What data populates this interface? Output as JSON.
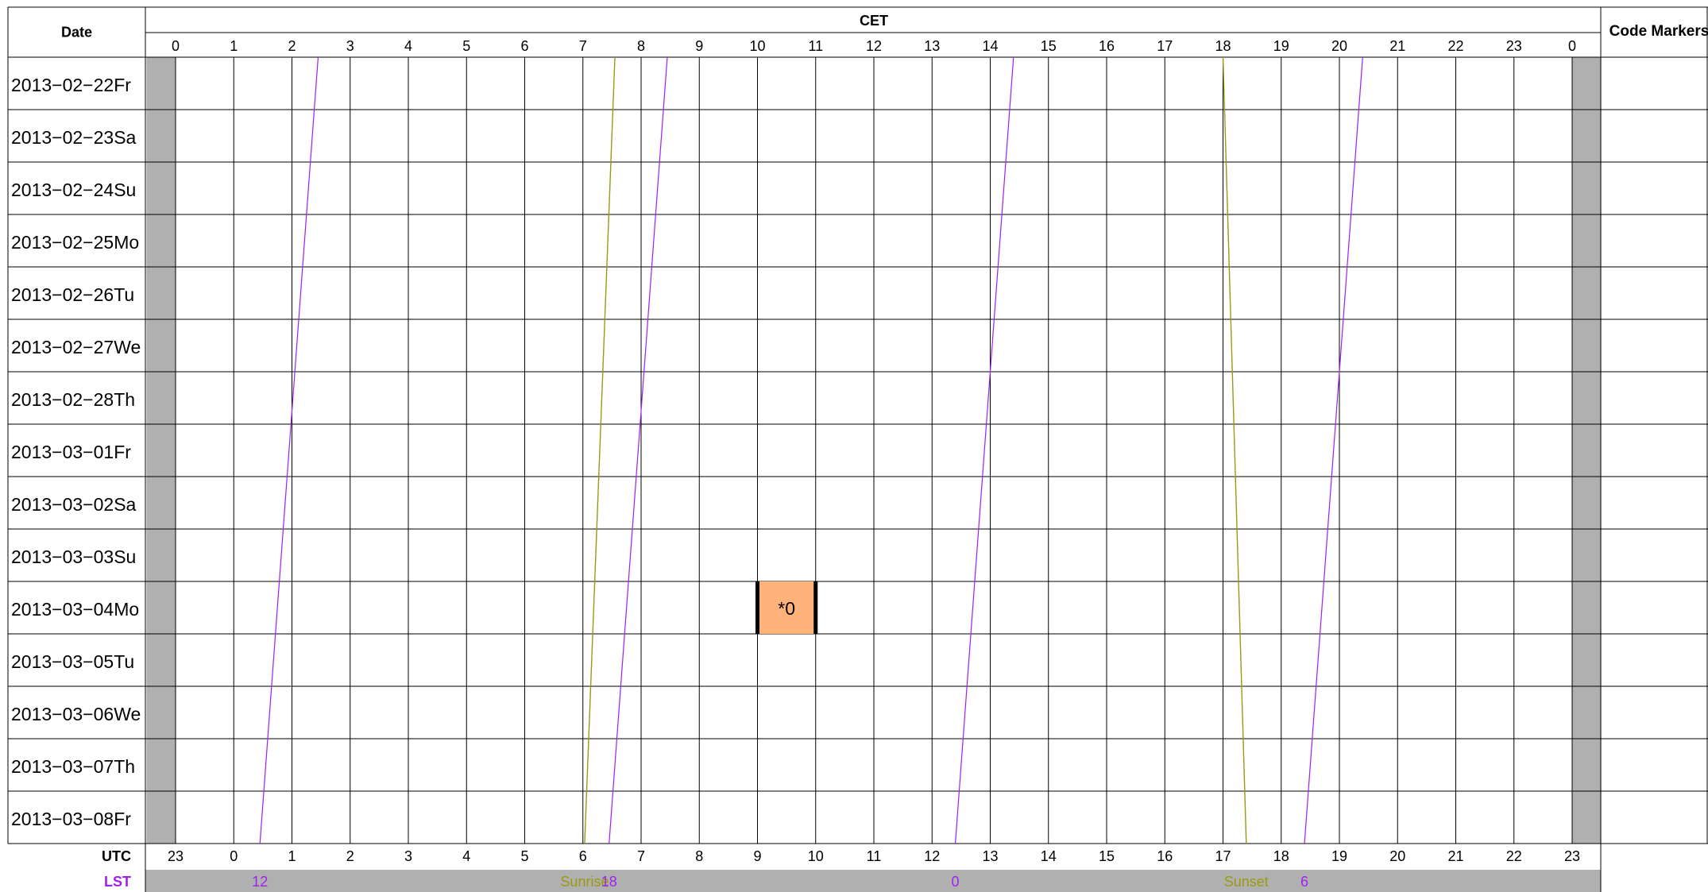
{
  "chart_data": {
    "type": "schedule-grid",
    "title_top": "CET",
    "date_header": "Date",
    "code_markers_header": "Code Markers",
    "utc_label": "UTC",
    "lst_label": "LST",
    "hours_cet": [
      "0",
      "1",
      "2",
      "3",
      "4",
      "5",
      "6",
      "7",
      "8",
      "9",
      "10",
      "11",
      "12",
      "13",
      "14",
      "15",
      "16",
      "17",
      "18",
      "19",
      "20",
      "21",
      "22",
      "23",
      "0"
    ],
    "hours_utc": [
      "23",
      "0",
      "1",
      "2",
      "3",
      "4",
      "5",
      "6",
      "7",
      "8",
      "9",
      "10",
      "11",
      "12",
      "13",
      "14",
      "15",
      "16",
      "17",
      "18",
      "19",
      "20",
      "21",
      "22",
      "23"
    ],
    "dates": [
      "2013−02−22Fr",
      "2013−02−23Sa",
      "2013−02−24Su",
      "2013−02−25Mo",
      "2013−02−26Tu",
      "2013−02−27We",
      "2013−02−28Th",
      "2013−03−01Fr",
      "2013−03−02Sa",
      "2013−03−03Su",
      "2013−03−04Mo",
      "2013−03−05Tu",
      "2013−03−06We",
      "2013−03−07Th",
      "2013−03−08Fr"
    ],
    "x_range_hours": [
      0,
      24
    ],
    "shaded_hour_ranges": [
      [
        -0.5,
        0
      ],
      [
        24,
        24.5
      ]
    ],
    "lst_lines_cet_hours": [
      {
        "first_row": 2.45,
        "last_row": 1.45
      },
      {
        "first_row": 8.45,
        "last_row": 7.45
      },
      {
        "first_row": 14.4,
        "last_row": 13.4
      },
      {
        "first_row": 20.4,
        "last_row": 19.4
      }
    ],
    "sunrise_cet_hours": {
      "first_row": 7.55,
      "last_row": 7.03
    },
    "sunset_cet_hours": {
      "first_row": 18.0,
      "last_row": 18.4
    },
    "lst_footer_labels": [
      {
        "text": "12",
        "cet_hour": 1.45,
        "kind": "lst"
      },
      {
        "text": "Sunrise",
        "cet_hour": 7.03,
        "kind": "sun"
      },
      {
        "text": "18",
        "cet_hour": 7.45,
        "kind": "lst"
      },
      {
        "text": "0",
        "cet_hour": 13.4,
        "kind": "lst"
      },
      {
        "text": "Sunset",
        "cet_hour": 18.4,
        "kind": "sun"
      },
      {
        "text": "6",
        "cet_hour": 19.4,
        "kind": "lst"
      }
    ],
    "events": [
      {
        "date_index": 10,
        "start_cet_hour": 10,
        "end_cet_hour": 11,
        "label": "*0"
      }
    ],
    "colors": {
      "lst": "#a020f0",
      "sun": "#9a9a10",
      "shade": "#b0b0b0",
      "event_fill": "#ffb27a",
      "grid": "#000000"
    }
  }
}
